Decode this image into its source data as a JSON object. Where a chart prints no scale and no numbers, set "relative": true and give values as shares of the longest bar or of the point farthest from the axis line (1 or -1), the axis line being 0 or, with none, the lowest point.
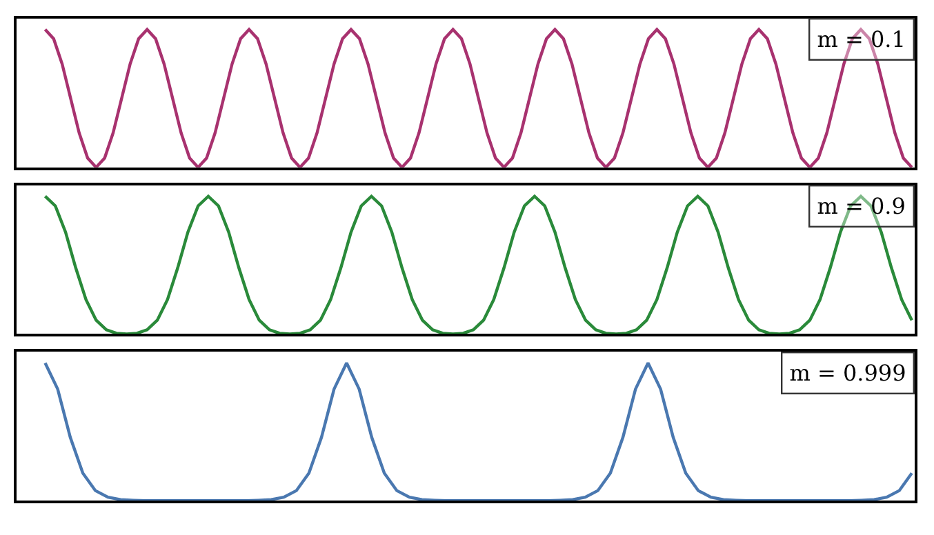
{
  "chart_data": [
    {
      "type": "line",
      "relative": true,
      "legend": "top right",
      "categories": [
        null,
        null,
        null,
        null,
        null,
        null,
        null,
        null,
        null,
        null,
        null,
        null,
        null,
        null,
        null,
        null,
        null,
        null,
        null,
        null,
        null,
        null,
        null,
        null,
        null,
        null,
        null,
        null,
        null,
        null,
        null,
        null,
        null,
        null,
        null,
        null,
        null,
        null,
        null,
        null,
        null,
        null,
        null,
        null,
        null,
        null,
        null,
        null,
        null,
        null,
        null,
        null,
        null,
        null,
        null,
        null,
        null,
        null,
        null,
        null,
        null,
        null,
        null,
        null,
        null,
        null,
        null,
        null,
        null,
        null,
        null,
        null,
        null,
        null,
        null,
        null,
        null,
        null,
        null,
        null,
        null,
        null,
        null,
        null,
        null,
        null,
        null,
        null,
        null,
        null,
        null,
        null,
        null,
        null,
        null,
        null,
        null,
        null,
        null,
        null,
        null,
        null,
        null
      ],
      "series": [
        {
          "name": "m = 0.1",
          "color": "#a8326f",
          "values": [
            1,
            0.933,
            0.75,
            0.5,
            0.25,
            0.067,
            0,
            0.067,
            0.25,
            0.5,
            0.75,
            0.933,
            1,
            0.933,
            0.75,
            0.5,
            0.25,
            0.067,
            0,
            0.067,
            0.25,
            0.5,
            0.75,
            0.933,
            1,
            0.933,
            0.75,
            0.5,
            0.25,
            0.067,
            0,
            0.067,
            0.25,
            0.5,
            0.75,
            0.933,
            1,
            0.933,
            0.75,
            0.5,
            0.25,
            0.067,
            0,
            0.067,
            0.25,
            0.5,
            0.75,
            0.933,
            1,
            0.933,
            0.75,
            0.5,
            0.25,
            0.067,
            0,
            0.067,
            0.25,
            0.5,
            0.75,
            0.933,
            1,
            0.933,
            0.75,
            0.5,
            0.25,
            0.067,
            0,
            0.067,
            0.25,
            0.5,
            0.75,
            0.933,
            1,
            0.933,
            0.75,
            0.5,
            0.25,
            0.067,
            0,
            0.067,
            0.25,
            0.5,
            0.75,
            0.933,
            1,
            0.933,
            0.75,
            0.5,
            0.25,
            0.067,
            0,
            0.067,
            0.25,
            0.5,
            0.75,
            0.933,
            1,
            0.933,
            0.75,
            0.5,
            0.25,
            0.067,
            0
          ]
        }
      ]
    },
    {
      "type": "line",
      "relative": true,
      "legend": "top right",
      "categories": [
        null,
        null,
        null,
        null,
        null,
        null,
        null,
        null,
        null,
        null,
        null,
        null,
        null,
        null,
        null,
        null,
        null,
        null,
        null,
        null,
        null,
        null,
        null,
        null,
        null,
        null,
        null,
        null,
        null,
        null,
        null,
        null,
        null,
        null,
        null,
        null,
        null,
        null,
        null,
        null,
        null,
        null,
        null,
        null,
        null,
        null,
        null,
        null,
        null,
        null,
        null,
        null,
        null,
        null,
        null,
        null,
        null,
        null,
        null,
        null,
        null,
        null,
        null,
        null,
        null,
        null,
        null,
        null,
        null,
        null,
        null,
        null,
        null,
        null,
        null,
        null,
        null,
        null,
        null,
        null,
        null,
        null,
        null,
        null,
        null,
        null
      ],
      "series": [
        {
          "name": "m = 0.9",
          "color": "#2a8a3a",
          "values": [
            1,
            0.93,
            0.74,
            0.48,
            0.25,
            0.1,
            0.03,
            0.005,
            0,
            0.005,
            0.03,
            0.1,
            0.25,
            0.48,
            0.74,
            0.93,
            1,
            0.93,
            0.74,
            0.48,
            0.25,
            0.1,
            0.03,
            0.005,
            0,
            0.005,
            0.03,
            0.1,
            0.25,
            0.48,
            0.74,
            0.93,
            1,
            0.93,
            0.74,
            0.48,
            0.25,
            0.1,
            0.03,
            0.005,
            0,
            0.005,
            0.03,
            0.1,
            0.25,
            0.48,
            0.74,
            0.93,
            1,
            0.93,
            0.74,
            0.48,
            0.25,
            0.1,
            0.03,
            0.005,
            0,
            0.005,
            0.03,
            0.1,
            0.25,
            0.48,
            0.74,
            0.93,
            1,
            0.93,
            0.74,
            0.48,
            0.25,
            0.1,
            0.03,
            0.005,
            0,
            0.005,
            0.03,
            0.1,
            0.25,
            0.48,
            0.74,
            0.93,
            1,
            0.93,
            0.74,
            0.48,
            0.25,
            0.1
          ]
        }
      ]
    },
    {
      "type": "line",
      "relative": true,
      "legend": "top right",
      "categories": [
        null,
        null,
        null,
        null,
        null,
        null,
        null,
        null,
        null,
        null,
        null,
        null,
        null,
        null,
        null,
        null,
        null,
        null,
        null,
        null,
        null,
        null,
        null,
        null,
        null,
        null,
        null,
        null,
        null,
        null,
        null,
        null,
        null,
        null,
        null,
        null,
        null,
        null,
        null,
        null,
        null,
        null,
        null,
        null,
        null,
        null,
        null,
        null,
        null,
        null,
        null,
        null,
        null,
        null,
        null,
        null,
        null,
        null,
        null,
        null,
        null,
        null,
        null,
        null,
        null,
        null,
        null,
        null,
        null,
        null
      ],
      "series": [
        {
          "name": "m = 0.999",
          "color": "#4a78b0",
          "values": [
            1,
            0.81,
            0.46,
            0.2,
            0.073,
            0.025,
            0.008,
            0.003,
            0,
            0,
            0,
            0,
            0,
            0,
            0,
            0,
            0,
            0.003,
            0.008,
            0.025,
            0.073,
            0.2,
            0.46,
            0.81,
            1,
            0.81,
            0.46,
            0.2,
            0.073,
            0.025,
            0.008,
            0.003,
            0,
            0,
            0,
            0,
            0,
            0,
            0,
            0,
            0,
            0.003,
            0.008,
            0.025,
            0.073,
            0.2,
            0.46,
            0.81,
            1,
            0.81,
            0.46,
            0.2,
            0.073,
            0.025,
            0.008,
            0.003,
            0,
            0,
            0,
            0,
            0,
            0,
            0,
            0,
            0,
            0.003,
            0.008,
            0.025,
            0.073,
            0.2
          ]
        }
      ]
    }
  ]
}
